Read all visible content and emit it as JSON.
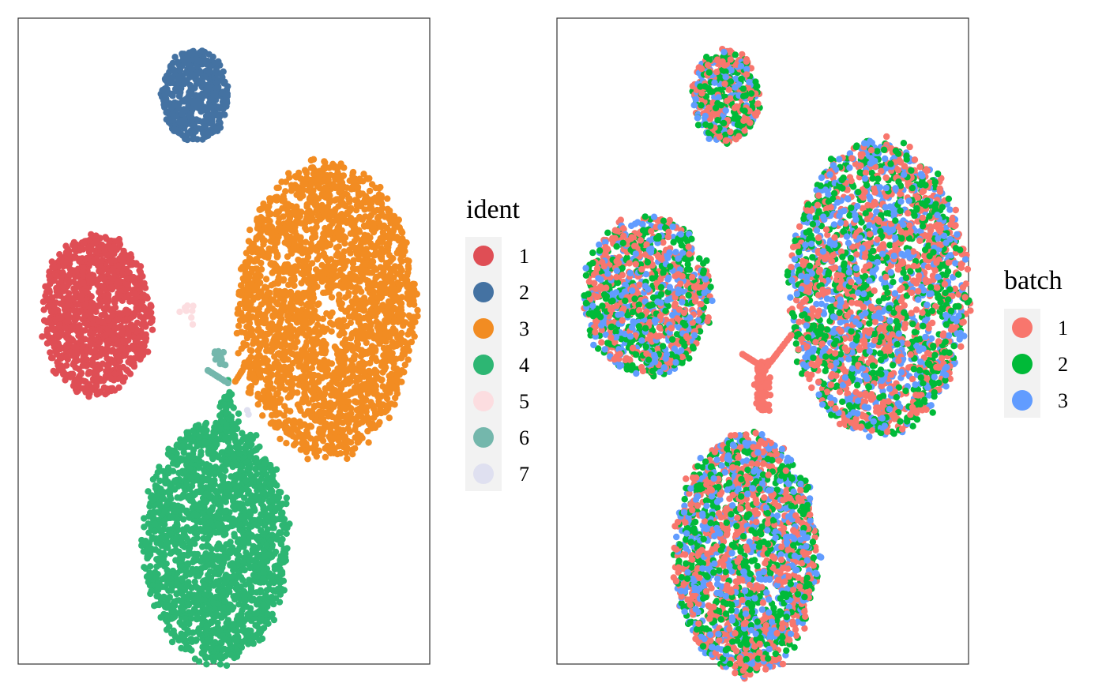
{
  "chart_data": [
    {
      "type": "scatter",
      "title": "",
      "xlabel": "",
      "ylabel": "",
      "grid": false,
      "legend": {
        "title": "ident",
        "placement": "right",
        "entries": [
          {
            "label": "1",
            "color": "#DF4E55"
          },
          {
            "label": "2",
            "color": "#4472A2"
          },
          {
            "label": "3",
            "color": "#F28C22"
          },
          {
            "label": "4",
            "color": "#2DB673"
          },
          {
            "label": "5",
            "color": "#FCDDE0"
          },
          {
            "label": "6",
            "color": "#74B7AC"
          },
          {
            "label": "7",
            "color": "#DFE0F0"
          }
        ]
      },
      "series": [
        {
          "name": "1",
          "clusters": [
            {
              "cx": 0.19,
              "cy": 0.54,
              "rx": 0.13,
              "ry": 0.12,
              "n": 1100
            }
          ]
        },
        {
          "name": "2",
          "clusters": [
            {
              "cx": 0.43,
              "cy": 0.88,
              "rx": 0.08,
              "ry": 0.07,
              "n": 450
            }
          ]
        },
        {
          "name": "3",
          "clusters": [
            {
              "cx": 0.75,
              "cy": 0.55,
              "rx": 0.21,
              "ry": 0.22,
              "n": 2400
            }
          ]
        },
        {
          "name": "4",
          "clusters": [
            {
              "cx": 0.48,
              "cy": 0.19,
              "rx": 0.17,
              "ry": 0.18,
              "n": 1900
            }
          ]
        },
        {
          "name": "5",
          "clusters": [
            {
              "cx": 0.41,
              "cy": 0.54,
              "rx": 0.02,
              "ry": 0.02,
              "n": 8
            }
          ]
        },
        {
          "name": "6",
          "clusters": [
            {
              "cx": 0.49,
              "cy": 0.47,
              "rx": 0.02,
              "ry": 0.015,
              "n": 12
            }
          ]
        },
        {
          "name": "7",
          "clusters": [
            {
              "cx": 0.56,
              "cy": 0.39,
              "rx": 0.005,
              "ry": 0.005,
              "n": 2
            }
          ]
        }
      ]
    },
    {
      "type": "scatter",
      "title": "",
      "xlabel": "",
      "ylabel": "",
      "grid": false,
      "legend": {
        "title": "batch",
        "placement": "right",
        "entries": [
          {
            "label": "1",
            "color": "#F8766D"
          },
          {
            "label": "2",
            "color": "#00BA38"
          },
          {
            "label": "3",
            "color": "#619CFF"
          }
        ]
      },
      "series": [
        {
          "name": "1"
        },
        {
          "name": "2"
        },
        {
          "name": "3"
        }
      ]
    }
  ]
}
